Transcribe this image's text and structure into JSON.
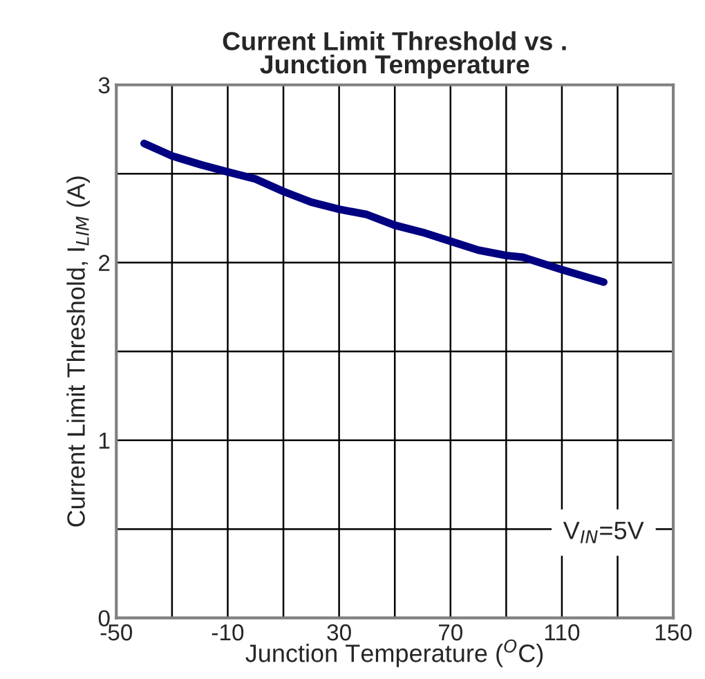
{
  "chart_data": {
    "type": "line",
    "title": "Current Limit Threshold vs .\nJunction Temperature",
    "xlabel": "Junction Temperature ($^{O}$C)",
    "ylabel": "Current Limit Threshold, I$_{LIM}$ (A)",
    "x": [
      -40,
      -30,
      -19.5,
      -10,
      0,
      10,
      20,
      30,
      40,
      50,
      60,
      70,
      80,
      90,
      96,
      110,
      125
    ],
    "series": [
      {
        "color": "#000080",
        "values": [
          2.67,
          2.6,
          2.55,
          2.51,
          2.47,
          2.4,
          2.34,
          2.3,
          2.27,
          2.21,
          2.17,
          2.12,
          2.07,
          2.04,
          2.03,
          1.96,
          1.89
        ]
      }
    ],
    "xlim": [
      -50,
      150
    ],
    "ylim": [
      0,
      3
    ],
    "xticks": [
      -50,
      {
        "value": -30,
        "label": null
      },
      -10,
      {
        "value": 10,
        "label": null
      },
      30,
      {
        "value": 50,
        "label": null
      },
      70,
      {
        "value": 90,
        "label": null
      },
      110,
      {
        "value": 130,
        "label": null
      },
      150
    ],
    "yticks": [
      0,
      {
        "value": 0.5,
        "label": null
      },
      1,
      {
        "value": 1.5,
        "label": null
      },
      2,
      {
        "value": 2.5,
        "label": null
      },
      3
    ],
    "grid": true,
    "marker": "none",
    "line_style": "solid",
    "annotations": [
      "V$_{IN}$=5V"
    ]
  }
}
